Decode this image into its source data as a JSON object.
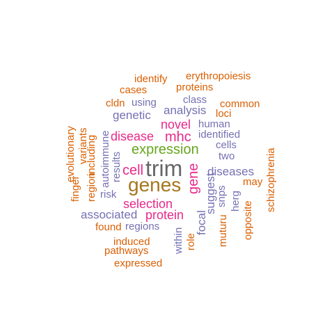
{
  "colors": {
    "orange": "#d95f02",
    "purple": "#7570b3",
    "magenta": "#e7298a",
    "green": "#66a61e",
    "gold": "#a6761d",
    "gray": "#666666"
  },
  "words": [
    {
      "text": "trim",
      "color": "gray"
    },
    {
      "text": "genes",
      "color": "gold"
    },
    {
      "text": "expression",
      "color": "green"
    },
    {
      "text": "cell",
      "color": "magenta"
    },
    {
      "text": "selection",
      "color": "magenta"
    },
    {
      "text": "protein",
      "color": "magenta"
    },
    {
      "text": "disease",
      "color": "magenta"
    },
    {
      "text": "mhc",
      "color": "magenta"
    },
    {
      "text": "novel",
      "color": "magenta"
    },
    {
      "text": "gene",
      "color": "magenta"
    },
    {
      "text": "genetic",
      "color": "purple"
    },
    {
      "text": "analysis",
      "color": "purple"
    },
    {
      "text": "using",
      "color": "purple"
    },
    {
      "text": "class",
      "color": "purple"
    },
    {
      "text": "human",
      "color": "purple"
    },
    {
      "text": "identified",
      "color": "purple"
    },
    {
      "text": "cells",
      "color": "purple"
    },
    {
      "text": "two",
      "color": "purple"
    },
    {
      "text": "diseases",
      "color": "purple"
    },
    {
      "text": "associated",
      "color": "purple"
    },
    {
      "text": "regions",
      "color": "purple"
    },
    {
      "text": "risk",
      "color": "purple"
    },
    {
      "text": "results",
      "color": "purple"
    },
    {
      "text": "autoimmune",
      "color": "purple"
    },
    {
      "text": "within",
      "color": "purple"
    },
    {
      "text": "focal",
      "color": "purple"
    },
    {
      "text": "suggest",
      "color": "purple"
    },
    {
      "text": "snps",
      "color": "purple"
    },
    {
      "text": "herg",
      "color": "purple"
    },
    {
      "text": "identify",
      "color": "orange"
    },
    {
      "text": "erythropoiesis",
      "color": "orange"
    },
    {
      "text": "cases",
      "color": "orange"
    },
    {
      "text": "proteins",
      "color": "orange"
    },
    {
      "text": "cldn",
      "color": "orange"
    },
    {
      "text": "common",
      "color": "orange"
    },
    {
      "text": "loci",
      "color": "orange"
    },
    {
      "text": "may",
      "color": "orange"
    },
    {
      "text": "found",
      "color": "orange"
    },
    {
      "text": "induced",
      "color": "orange"
    },
    {
      "text": "pathways",
      "color": "orange"
    },
    {
      "text": "expressed",
      "color": "orange"
    },
    {
      "text": "role",
      "color": "orange"
    },
    {
      "text": "muturu",
      "color": "orange"
    },
    {
      "text": "opposite",
      "color": "orange"
    },
    {
      "text": "schizophrenia",
      "color": "orange"
    },
    {
      "text": "finger",
      "color": "orange"
    },
    {
      "text": "evolutionary",
      "color": "orange"
    },
    {
      "text": "region",
      "color": "orange"
    },
    {
      "text": "variants",
      "color": "orange"
    },
    {
      "text": "including",
      "color": "orange"
    }
  ]
}
